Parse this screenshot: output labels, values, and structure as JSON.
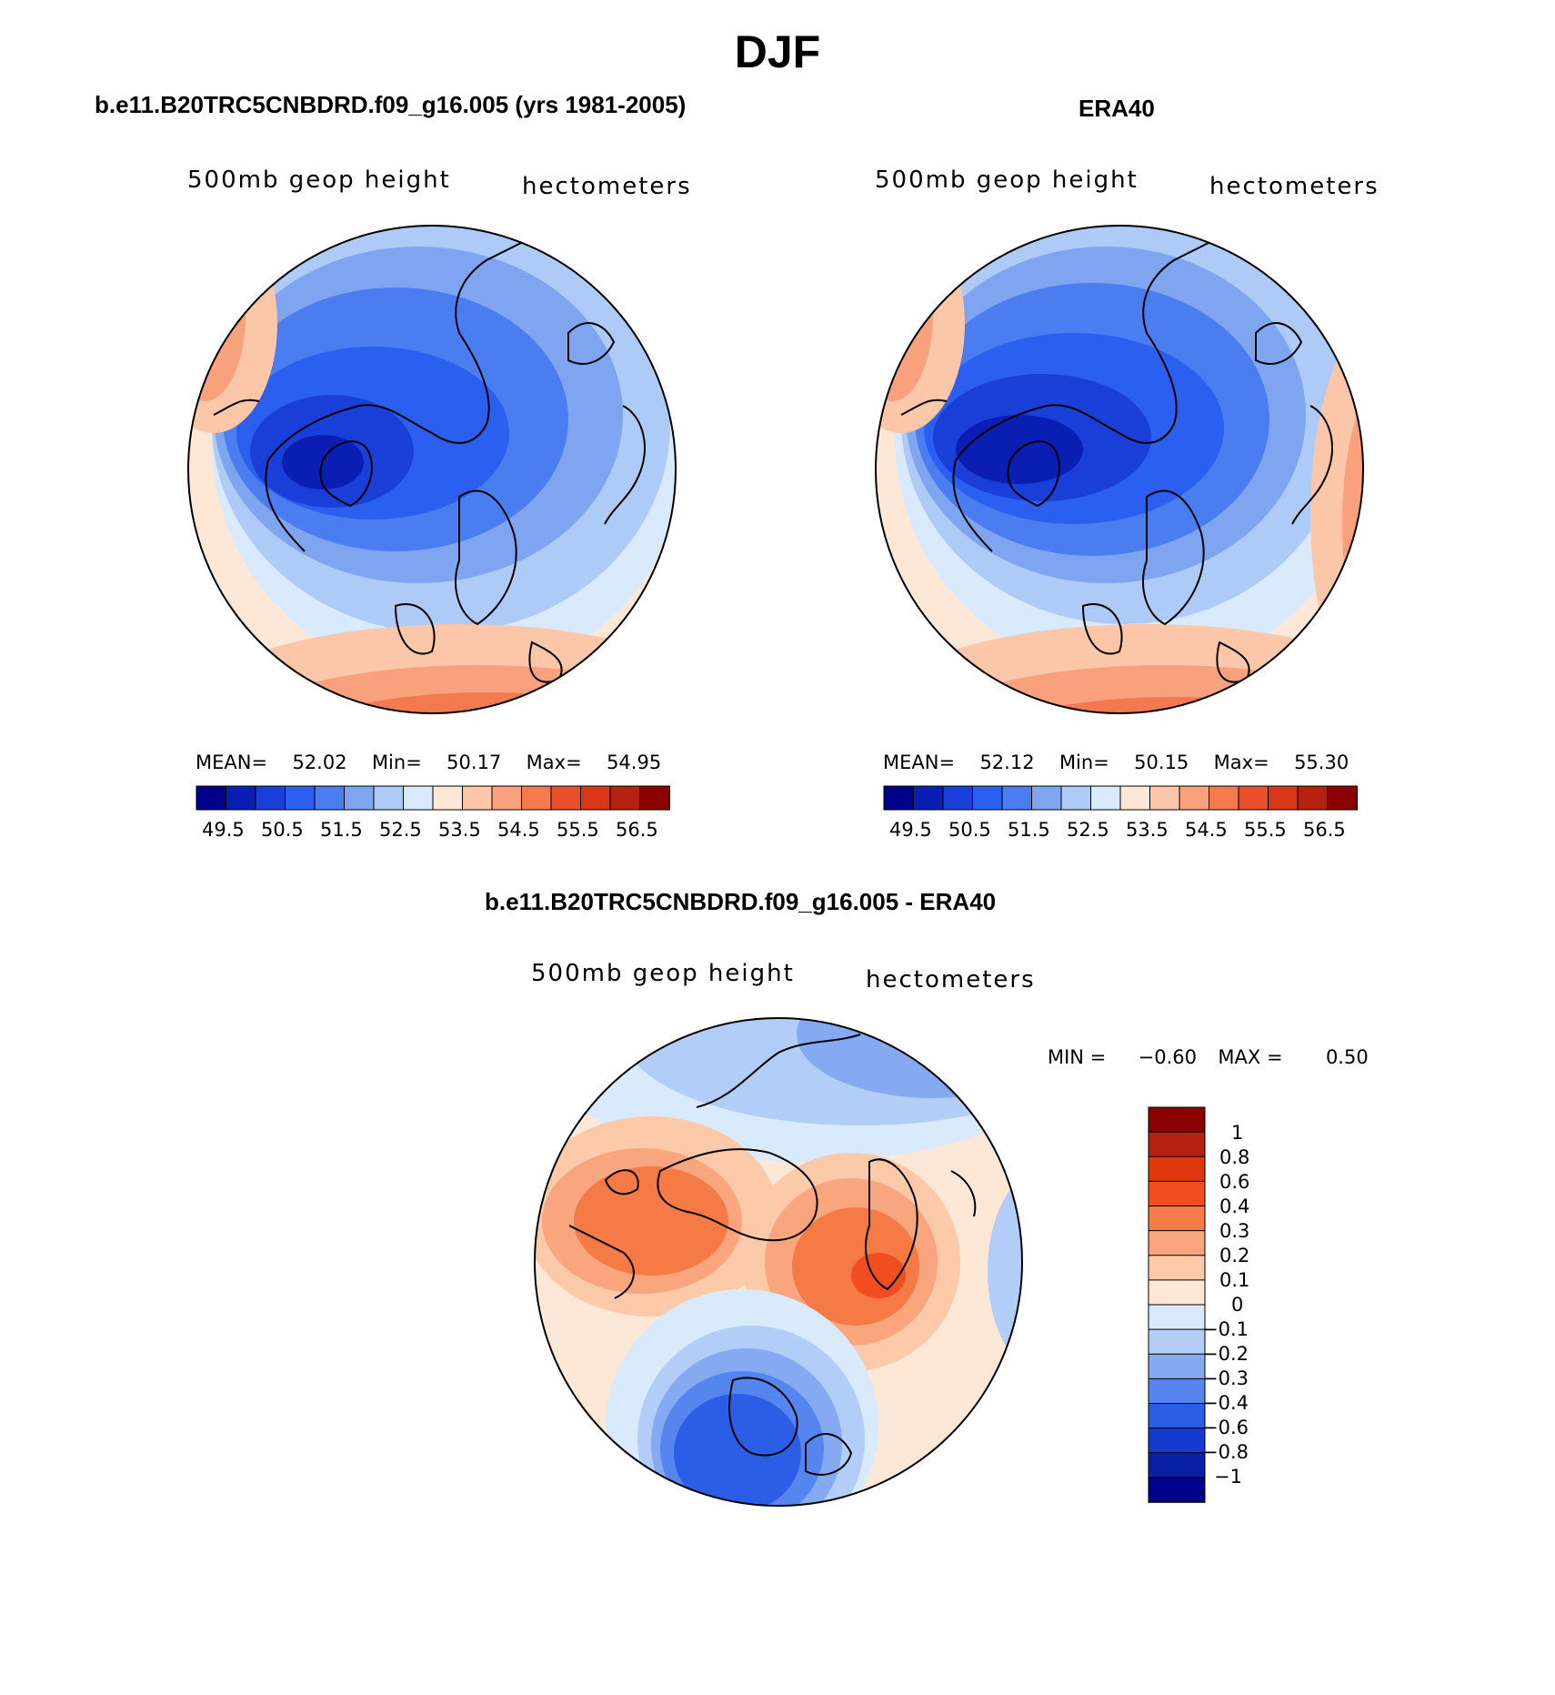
{
  "figure": {
    "title": "DJF"
  },
  "panels": [
    {
      "id": "model",
      "title": "b.e11.B20TRC5CNBDRD.f09_g16.005 (yrs 1981-2005)",
      "left_label": "500mb geop height",
      "right_label": "hectometers",
      "stats": {
        "mean_label": "MEAN=",
        "mean": "52.02",
        "min_label": "Min=",
        "min": "50.17",
        "max_label": "Max=",
        "max": "54.95"
      },
      "colorbar_ticks": [
        "49.5",
        "50.5",
        "51.5",
        "52.5",
        "53.5",
        "54.5",
        "55.5",
        "56.5"
      ]
    },
    {
      "id": "obs",
      "title": "ERA40",
      "left_label": "500mb geop height",
      "right_label": "hectometers",
      "stats": {
        "mean_label": "MEAN=",
        "mean": "52.12",
        "min_label": "Min=",
        "min": "50.15",
        "max_label": "Max=",
        "max": "55.30"
      },
      "colorbar_ticks": [
        "49.5",
        "50.5",
        "51.5",
        "52.5",
        "53.5",
        "54.5",
        "55.5",
        "56.5"
      ]
    }
  ],
  "diff_panel": {
    "title": "b.e11.B20TRC5CNBDRD.f09_g16.005 - ERA40",
    "left_label": "500mb geop height",
    "right_label": "hectometers",
    "stats": {
      "min_label": "MIN =",
      "min": "−0.60",
      "max_label": "MAX =",
      "max": "0.50"
    },
    "colorbar_ticks": [
      "1",
      "0.8",
      "0.6",
      "0.4",
      "0.3",
      "0.2",
      "0.1",
      "0",
      "−0.1",
      "−0.2",
      "−0.3",
      "−0.4",
      "−0.6",
      "−0.8",
      "−1"
    ]
  },
  "colors": {
    "abs_scale": [
      "#00008b",
      "#0a1eb4",
      "#1a3fd8",
      "#2b5ff0",
      "#4a7df0",
      "#7fa5f0",
      "#aecbf7",
      "#d9eafc",
      "#fde8d8",
      "#fcc6a8",
      "#f9a07c",
      "#f27a4e",
      "#e8502a",
      "#d8361a",
      "#b52211",
      "#8b0000"
    ],
    "diff_scale": [
      "#8b0000",
      "#b52211",
      "#e0380e",
      "#f04e20",
      "#f57a45",
      "#f9a57d",
      "#fcc9a9",
      "#fde8d8",
      "#d9eafc",
      "#b2cef8",
      "#86aaf2",
      "#5585ee",
      "#2c5de6",
      "#153ad0",
      "#0a1fa8",
      "#00008b"
    ]
  },
  "chart_data": [
    {
      "type": "heatmap",
      "title": "b.e11.B20TRC5CNBDRD.f09_g16.005 (yrs 1981-2005)",
      "variable": "500mb geop height",
      "units": "hectometers",
      "projection": "north polar stereographic",
      "mean": 52.02,
      "min": 50.17,
      "max": 54.95,
      "contour_levels": [
        49.5,
        50.0,
        50.5,
        51.0,
        51.5,
        52.0,
        52.5,
        53.0,
        53.5,
        54.0,
        54.5,
        55.0,
        55.5,
        56.0,
        56.5
      ]
    },
    {
      "type": "heatmap",
      "title": "ERA40",
      "variable": "500mb geop height",
      "units": "hectometers",
      "projection": "north polar stereographic",
      "mean": 52.12,
      "min": 50.15,
      "max": 55.3,
      "contour_levels": [
        49.5,
        50.0,
        50.5,
        51.0,
        51.5,
        52.0,
        52.5,
        53.0,
        53.5,
        54.0,
        54.5,
        55.0,
        55.5,
        56.0,
        56.5
      ]
    },
    {
      "type": "heatmap",
      "title": "b.e11.B20TRC5CNBDRD.f09_g16.005 - ERA40",
      "variable": "500mb geop height",
      "units": "hectometers",
      "projection": "north polar stereographic",
      "min": -0.6,
      "max": 0.5,
      "contour_levels": [
        -1,
        -0.8,
        -0.6,
        -0.4,
        -0.3,
        -0.2,
        -0.1,
        0,
        0.1,
        0.2,
        0.3,
        0.4,
        0.6,
        0.8,
        1
      ]
    }
  ]
}
